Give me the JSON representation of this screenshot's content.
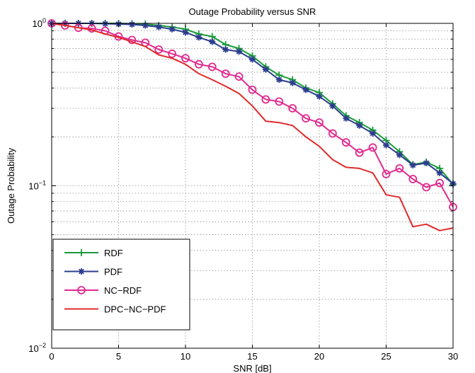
{
  "chart_data": {
    "type": "line",
    "title": "Outage Probability versus SNR",
    "xlabel": "SNR [dB]",
    "ylabel": "Outage Probability",
    "xlim": [
      0,
      30
    ],
    "ylim": [
      0.01,
      1
    ],
    "yscale": "log",
    "grid": true,
    "legend_position": "bottom-left",
    "x_ticks": [
      0,
      5,
      10,
      15,
      20,
      25,
      30
    ],
    "x_tick_labels": [
      "0",
      "5",
      "10",
      "15",
      "20",
      "25",
      "30"
    ],
    "y_ticks": [
      {
        "value": 1,
        "base": "10",
        "exp": "0"
      },
      {
        "value": 0.1,
        "base": "10",
        "exp": "−1"
      },
      {
        "value": 0.01,
        "base": "10",
        "exp": "−2"
      }
    ],
    "x": [
      0,
      1,
      2,
      3,
      4,
      5,
      6,
      7,
      8,
      9,
      10,
      11,
      12,
      13,
      14,
      15,
      16,
      17,
      18,
      19,
      20,
      21,
      22,
      23,
      24,
      25,
      26,
      27,
      28,
      29,
      30
    ],
    "series": [
      {
        "name": "RDF",
        "color": "#1a9a3a",
        "marker": "plus",
        "values": [
          1.0,
          1.0,
          1.0,
          1.0,
          1.0,
          1.0,
          0.995,
          0.99,
          0.97,
          0.95,
          0.92,
          0.86,
          0.83,
          0.74,
          0.7,
          0.63,
          0.54,
          0.48,
          0.45,
          0.4,
          0.375,
          0.32,
          0.27,
          0.245,
          0.22,
          0.19,
          0.162,
          0.135,
          0.14,
          0.128,
          0.102
        ]
      },
      {
        "name": "PDF",
        "color": "#2b3d8f",
        "marker": "star",
        "values": [
          1.0,
          1.0,
          1.0,
          1.0,
          0.995,
          0.99,
          0.985,
          0.97,
          0.95,
          0.92,
          0.88,
          0.82,
          0.77,
          0.69,
          0.67,
          0.6,
          0.52,
          0.45,
          0.43,
          0.39,
          0.355,
          0.31,
          0.26,
          0.235,
          0.21,
          0.178,
          0.155,
          0.134,
          0.138,
          0.12,
          0.103
        ]
      },
      {
        "name": "NC−RDF",
        "color": "#e0298f",
        "marker": "circle",
        "values": [
          1.0,
          0.97,
          0.94,
          0.93,
          0.9,
          0.83,
          0.79,
          0.76,
          0.69,
          0.65,
          0.61,
          0.56,
          0.54,
          0.49,
          0.47,
          0.39,
          0.34,
          0.33,
          0.3,
          0.26,
          0.245,
          0.21,
          0.185,
          0.16,
          0.172,
          0.118,
          0.128,
          0.11,
          0.098,
          0.104,
          0.074
        ]
      },
      {
        "name": "DPC−NC−PDF",
        "color": "#e02a2a",
        "marker": "none",
        "values": [
          1.0,
          0.97,
          0.94,
          0.91,
          0.86,
          0.82,
          0.77,
          0.72,
          0.64,
          0.61,
          0.56,
          0.49,
          0.45,
          0.41,
          0.37,
          0.31,
          0.25,
          0.245,
          0.235,
          0.2,
          0.175,
          0.145,
          0.13,
          0.128,
          0.12,
          0.088,
          0.085,
          0.056,
          0.058,
          0.053,
          0.055
        ]
      }
    ]
  }
}
